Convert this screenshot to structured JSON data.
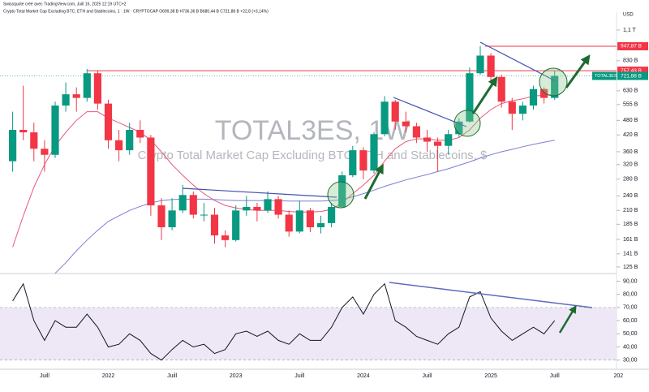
{
  "chart_data": {
    "type": "candlestick",
    "header": "Swissquote créé avec TradingView.com, Juill 16, 2025 12:19 UTC+2",
    "symbol_line": "Crypto Total Market Cap Excluding BTC, ETH and Stablecoins, 1 · 1W · CRYPTOCAP  O699,38 B  H736,36 B  B680,44 B  C721,88 B  +22,8 (+3,14%)",
    "title": "TOTAL3ES, 1W",
    "subtitle": "Crypto Total Market Cap Excluding BTC, ETH and Stablecoins, $",
    "currency_label": "USD",
    "categories": [
      null,
      null,
      null,
      "Juill",
      null,
      null,
      null,
      null,
      null,
      "2022",
      null,
      null,
      null,
      null,
      null,
      "Juill",
      null,
      null,
      null,
      null,
      null,
      "2023",
      null,
      null,
      null,
      null,
      null,
      "Juill",
      null,
      null,
      null,
      null,
      null,
      "2024",
      null,
      null,
      null,
      null,
      null,
      "Juill",
      null,
      null,
      null,
      null,
      null,
      "2025",
      null,
      null,
      null,
      null,
      null,
      "Juill",
      null,
      null,
      null,
      null,
      null,
      "202"
    ],
    "open": [
      330,
      440,
      430,
      370,
      350,
      550,
      610,
      590,
      740,
      560,
      400,
      365,
      440,
      410,
      220,
      180,
      210,
      242,
      202,
      202,
      167,
      160,
      210,
      217,
      210,
      233,
      202,
      173,
      210,
      180,
      187,
      217,
      290,
      365,
      303,
      423,
      570,
      475,
      455,
      410,
      395,
      380,
      423,
      475,
      740,
      870,
      715,
      570,
      510,
      550,
      640,
      590,
      null,
      null,
      null,
      null,
      null,
      null
    ],
    "high": [
      520,
      660,
      470,
      400,
      570,
      680,
      650,
      770,
      760,
      580,
      440,
      470,
      480,
      420,
      235,
      235,
      265,
      250,
      225,
      215,
      175,
      220,
      240,
      225,
      250,
      240,
      210,
      230,
      215,
      200,
      225,
      300,
      380,
      375,
      430,
      600,
      580,
      520,
      470,
      440,
      410,
      440,
      490,
      780,
      950,
      890,
      730,
      590,
      570,
      660,
      650,
      757,
      null,
      null,
      null,
      null,
      null,
      null
    ],
    "low": [
      300,
      400,
      330,
      300,
      340,
      520,
      520,
      570,
      530,
      370,
      330,
      350,
      390,
      200,
      160,
      175,
      205,
      195,
      190,
      155,
      150,
      158,
      200,
      190,
      205,
      195,
      165,
      170,
      172,
      170,
      180,
      215,
      285,
      280,
      295,
      415,
      440,
      430,
      390,
      360,
      300,
      350,
      410,
      470,
      730,
      690,
      540,
      440,
      480,
      530,
      560,
      580,
      null,
      null,
      null,
      null,
      null,
      null
    ],
    "close": [
      440,
      430,
      370,
      350,
      550,
      610,
      590,
      740,
      560,
      400,
      365,
      440,
      410,
      220,
      180,
      210,
      242,
      202,
      202,
      167,
      160,
      210,
      217,
      210,
      233,
      202,
      173,
      210,
      180,
      187,
      217,
      290,
      365,
      303,
      423,
      570,
      475,
      455,
      410,
      395,
      380,
      423,
      475,
      740,
      870,
      715,
      570,
      510,
      550,
      640,
      590,
      722,
      null,
      null,
      null,
      null,
      null,
      null
    ],
    "up_color": "#089981",
    "down_color": "#f23645",
    "series": [
      {
        "color": "#e8577a",
        "values": [
          150,
          200,
          260,
          320,
          380,
          430,
          480,
          520,
          520,
          490,
          470,
          450,
          430,
          400,
          360,
          320,
          290,
          265,
          245,
          230,
          220,
          215,
          212,
          210,
          210,
          210,
          208,
          207,
          207,
          208,
          212,
          225,
          245,
          265,
          290,
          330,
          370,
          395,
          405,
          405,
          400,
          400,
          410,
          440,
          490,
          530,
          560,
          575,
          585,
          600,
          605,
          610,
          null,
          null,
          null,
          null,
          null,
          null
        ]
      },
      {
        "color": "#7b7fd4",
        "values": [
          null,
          null,
          null,
          null,
          118,
          130,
          145,
          160,
          175,
          190,
          200,
          210,
          218,
          225,
          230,
          232,
          233,
          233,
          233,
          232,
          231,
          230,
          230,
          230,
          230,
          230,
          229,
          229,
          229,
          229,
          230,
          232,
          238,
          245,
          253,
          262,
          270,
          278,
          285,
          292,
          300,
          308,
          318,
          328,
          340,
          350,
          360,
          368,
          377,
          385,
          393,
          400,
          null,
          null,
          null,
          null,
          null,
          null
        ]
      }
    ],
    "log_scale": true,
    "ylim": [
      119.5,
      1296
    ],
    "yticks": [
      {
        "value": 125,
        "label": "125 B"
      },
      {
        "value": 141,
        "label": "141 B"
      },
      {
        "value": 161,
        "label": "161 B"
      },
      {
        "value": 185,
        "label": "185 B"
      },
      {
        "value": 210,
        "label": "210 B"
      },
      {
        "value": 240,
        "label": "240 B"
      },
      {
        "value": 280,
        "label": "280 B"
      },
      {
        "value": 320,
        "label": "320 B"
      },
      {
        "value": 360,
        "label": "360 B"
      },
      {
        "value": 420,
        "label": "420 B"
      },
      {
        "value": 480,
        "label": "480 B"
      },
      {
        "value": 555,
        "label": "555 B"
      },
      {
        "value": 630,
        "label": "630 B"
      },
      {
        "value": 720,
        "label": "720 B"
      },
      {
        "value": 830,
        "label": "830 B"
      },
      {
        "value": 1100,
        "label": "1,1 T"
      }
    ],
    "levels": [
      {
        "value": 947.87,
        "label": "947,87 B",
        "color": "#f23645"
      },
      {
        "value": 757.43,
        "label": "757,43 B",
        "color": "#f23645"
      }
    ],
    "last": {
      "value": 721.88,
      "label": "721,88 B",
      "name": "TOTAL3ES",
      "color": "#089981"
    },
    "indicator": {
      "color": "#131722",
      "band": [
        30,
        70
      ],
      "band_color": "#ede7f6",
      "values": [
        75,
        88,
        60,
        45,
        60,
        55,
        55,
        65,
        55,
        40,
        42,
        50,
        45,
        35,
        30,
        38,
        45,
        40,
        42,
        35,
        38,
        50,
        52,
        48,
        52,
        45,
        42,
        50,
        45,
        45,
        55,
        70,
        78,
        65,
        80,
        88,
        60,
        55,
        48,
        45,
        42,
        50,
        55,
        78,
        82,
        62,
        52,
        45,
        50,
        55,
        50,
        60,
        null,
        null,
        null,
        null,
        null,
        null
      ],
      "ylim": [
        23,
        94
      ],
      "yticks": [
        {
          "value": 90,
          "label": "90,00"
        },
        {
          "value": 80,
          "label": "80,00"
        },
        {
          "value": 70,
          "label": "70,00"
        },
        {
          "value": 60,
          "label": "60,00"
        },
        {
          "value": 50,
          "label": "50,00"
        },
        {
          "value": 40,
          "label": "40,00"
        },
        {
          "value": 30,
          "label": "30,00"
        }
      ]
    }
  }
}
